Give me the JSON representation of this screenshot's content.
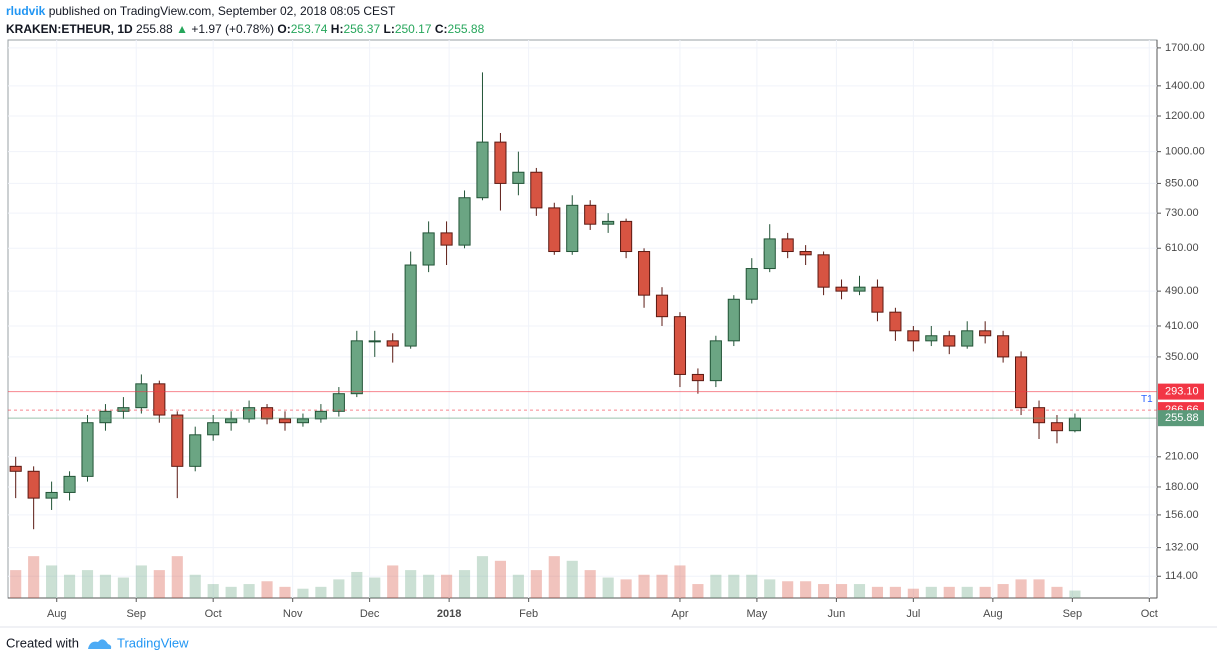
{
  "header": {
    "author": "rludvik",
    "published": "published on TradingView.com, September 02, 2018 08:05 CEST",
    "symbol": "KRAKEN:ETHEUR, 1D",
    "last": "255.88",
    "arrow": "▲",
    "change": "+1.97 (+0.78%)",
    "o_label": "O:",
    "o": "253.74",
    "h_label": "H:",
    "h": "256.37",
    "l_label": "L:",
    "l": "250.17",
    "c_label": "C:",
    "c": "255.88"
  },
  "footer": {
    "created": "Created with",
    "brand": "TradingView"
  },
  "chart_data": {
    "type": "candlestick",
    "log_scale": true,
    "up_color": "#6ba583",
    "down_color": "#d75442",
    "xlim": [
      0,
      448
    ],
    "xticks": [
      {
        "value": 19,
        "label": "Aug"
      },
      {
        "value": 50,
        "label": "Sep"
      },
      {
        "value": 80,
        "label": "Oct"
      },
      {
        "value": 111,
        "label": "Nov"
      },
      {
        "value": 141,
        "label": "Dec"
      },
      {
        "value": 172,
        "label": "2018"
      },
      {
        "value": 203,
        "label": "Feb"
      },
      {
        "value": 262,
        "label": "Apr"
      },
      {
        "value": 292,
        "label": "May"
      },
      {
        "value": 323,
        "label": "Jun"
      },
      {
        "value": 353,
        "label": "Jul"
      },
      {
        "value": 384,
        "label": "Aug"
      },
      {
        "value": 415,
        "label": "Sep"
      },
      {
        "value": 445,
        "label": "Oct"
      }
    ],
    "ylim": [
      102,
      1770
    ],
    "yticks": [
      {
        "value": 1700,
        "label": "1700.00"
      },
      {
        "value": 1400,
        "label": "1400.00"
      },
      {
        "value": 1200,
        "label": "1200.00"
      },
      {
        "value": 1000,
        "label": "1000.00"
      },
      {
        "value": 850,
        "label": "850.00"
      },
      {
        "value": 730,
        "label": "730.00"
      },
      {
        "value": 610,
        "label": "610.00"
      },
      {
        "value": 490,
        "label": "490.00"
      },
      {
        "value": 410,
        "label": "410.00"
      },
      {
        "value": 350,
        "label": "350.00"
      },
      {
        "value": 210,
        "label": "210.00"
      },
      {
        "value": 180,
        "label": "180.00"
      },
      {
        "value": 156,
        "label": "156.00"
      },
      {
        "value": 132,
        "label": "132.00"
      },
      {
        "value": 114,
        "label": "114.00"
      }
    ],
    "price_lines": [
      {
        "value": 293.1,
        "label": "293.10",
        "color": "#f23645"
      },
      {
        "value": 266.66,
        "label": "266.66",
        "color": "#f23645"
      },
      {
        "value": 255.88,
        "label": "255.88",
        "color": "#5b9a7a"
      }
    ],
    "annotation": "T1",
    "x": [
      3,
      10,
      17,
      24,
      31,
      38,
      45,
      52,
      59,
      66,
      73,
      80,
      87,
      94,
      101,
      108,
      115,
      122,
      129,
      136,
      143,
      150,
      157,
      164,
      171,
      178,
      185,
      192,
      199,
      206,
      213,
      220,
      227,
      234,
      241,
      248,
      255,
      262,
      269,
      276,
      283,
      290,
      297,
      304,
      311,
      318,
      325,
      332,
      339,
      346,
      353,
      360,
      367,
      374,
      381,
      388,
      395,
      402,
      409,
      416
    ],
    "open": [
      200,
      195,
      170,
      175,
      190,
      250,
      265,
      270,
      305,
      260,
      200,
      235,
      250,
      255,
      270,
      255,
      250,
      255,
      265,
      290,
      380,
      380,
      370,
      560,
      660,
      620,
      790,
      1050,
      850,
      900,
      750,
      600,
      760,
      690,
      700,
      600,
      480,
      430,
      320,
      310,
      380,
      470,
      550,
      640,
      600,
      590,
      500,
      490,
      500,
      440,
      400,
      380,
      390,
      370,
      400,
      390,
      350,
      270,
      250,
      240
    ],
    "high": [
      210,
      200,
      185,
      195,
      260,
      275,
      285,
      320,
      310,
      265,
      245,
      260,
      265,
      280,
      275,
      265,
      262,
      275,
      300,
      400,
      400,
      395,
      600,
      700,
      700,
      820,
      1500,
      1100,
      1000,
      920,
      770,
      800,
      780,
      730,
      710,
      610,
      500,
      440,
      330,
      390,
      480,
      580,
      690,
      660,
      620,
      600,
      520,
      530,
      520,
      450,
      410,
      410,
      400,
      420,
      420,
      400,
      360,
      280,
      260,
      262
    ],
    "low": [
      170,
      145,
      160,
      168,
      185,
      240,
      255,
      262,
      250,
      170,
      195,
      228,
      240,
      250,
      248,
      240,
      245,
      250,
      258,
      285,
      350,
      340,
      365,
      540,
      560,
      610,
      780,
      740,
      800,
      720,
      590,
      590,
      670,
      660,
      580,
      450,
      410,
      300,
      290,
      300,
      370,
      460,
      540,
      580,
      560,
      480,
      470,
      480,
      420,
      380,
      360,
      370,
      355,
      365,
      375,
      340,
      260,
      230,
      225,
      238
    ],
    "close": [
      195,
      170,
      175,
      190,
      250,
      265,
      270,
      305,
      260,
      200,
      235,
      250,
      255,
      270,
      255,
      250,
      255,
      265,
      290,
      380,
      380,
      370,
      560,
      660,
      620,
      790,
      1050,
      850,
      900,
      750,
      600,
      760,
      690,
      700,
      600,
      480,
      430,
      320,
      310,
      380,
      470,
      550,
      640,
      600,
      590,
      500,
      490,
      500,
      440,
      400,
      380,
      390,
      370,
      400,
      390,
      350,
      270,
      250,
      240,
      255.88
    ],
    "volume_lim": [
      0,
      100
    ],
    "volume": [
      30,
      45,
      35,
      25,
      30,
      25,
      22,
      35,
      30,
      45,
      25,
      15,
      12,
      15,
      18,
      12,
      10,
      12,
      20,
      28,
      22,
      35,
      30,
      25,
      25,
      30,
      45,
      40,
      25,
      30,
      45,
      40,
      30,
      22,
      20,
      25,
      25,
      35,
      15,
      25,
      25,
      25,
      20,
      18,
      18,
      15,
      15,
      15,
      12,
      12,
      10,
      12,
      12,
      12,
      12,
      15,
      20,
      20,
      12,
      8
    ]
  }
}
